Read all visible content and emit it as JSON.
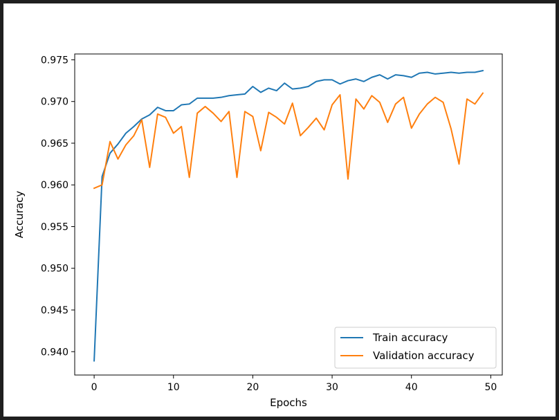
{
  "chart_data": {
    "type": "line",
    "xlabel": "Epochs",
    "ylabel": "Accuracy",
    "xlim": [
      -2.45,
      51.45
    ],
    "ylim": [
      0.9372,
      0.9757
    ],
    "xticks": [
      "0",
      "10",
      "20",
      "30",
      "40",
      "50"
    ],
    "xtick_values": [
      0,
      10,
      20,
      30,
      40,
      50
    ],
    "yticks": [
      "0.940",
      "0.945",
      "0.950",
      "0.955",
      "0.960",
      "0.965",
      "0.970",
      "0.975"
    ],
    "ytick_values": [
      0.94,
      0.945,
      0.95,
      0.955,
      0.96,
      0.965,
      0.97,
      0.975
    ],
    "grid": false,
    "legend_position": "bottom-right",
    "x": [
      0,
      1,
      2,
      3,
      4,
      5,
      6,
      7,
      8,
      9,
      10,
      11,
      12,
      13,
      14,
      15,
      16,
      17,
      18,
      19,
      20,
      21,
      22,
      23,
      24,
      25,
      26,
      27,
      28,
      29,
      30,
      31,
      32,
      33,
      34,
      35,
      36,
      37,
      38,
      39,
      40,
      41,
      42,
      43,
      44,
      45,
      46,
      47,
      48,
      49
    ],
    "series": [
      {
        "name": "Train accuracy",
        "color": "#1f77b4",
        "values": [
          0.9389,
          0.961,
          0.9638,
          0.9649,
          0.9662,
          0.967,
          0.9679,
          0.9684,
          0.9693,
          0.9689,
          0.9689,
          0.9696,
          0.9697,
          0.9704,
          0.9704,
          0.9704,
          0.9705,
          0.9707,
          0.9708,
          0.9709,
          0.9718,
          0.9711,
          0.9716,
          0.9713,
          0.9722,
          0.9715,
          0.9716,
          0.9718,
          0.9724,
          0.9726,
          0.9726,
          0.9721,
          0.9725,
          0.9727,
          0.9724,
          0.9729,
          0.9732,
          0.9727,
          0.9732,
          0.9731,
          0.9729,
          0.9734,
          0.9735,
          0.9733,
          0.9734,
          0.9735,
          0.9734,
          0.9735,
          0.9735,
          0.9737
        ]
      },
      {
        "name": "Validation accuracy",
        "color": "#ff7f0e",
        "values": [
          0.9596,
          0.96,
          0.9652,
          0.9631,
          0.9648,
          0.9659,
          0.9678,
          0.9621,
          0.9685,
          0.9681,
          0.9662,
          0.967,
          0.9609,
          0.9686,
          0.9694,
          0.9686,
          0.9676,
          0.9688,
          0.9609,
          0.9688,
          0.9682,
          0.9641,
          0.9687,
          0.9681,
          0.9673,
          0.9698,
          0.9659,
          0.9669,
          0.968,
          0.9666,
          0.9696,
          0.9708,
          0.9607,
          0.9703,
          0.9691,
          0.9707,
          0.9699,
          0.9675,
          0.9697,
          0.9705,
          0.9668,
          0.9685,
          0.9697,
          0.9705,
          0.9699,
          0.9667,
          0.9625,
          0.9703,
          0.9697,
          0.971
        ]
      }
    ]
  }
}
